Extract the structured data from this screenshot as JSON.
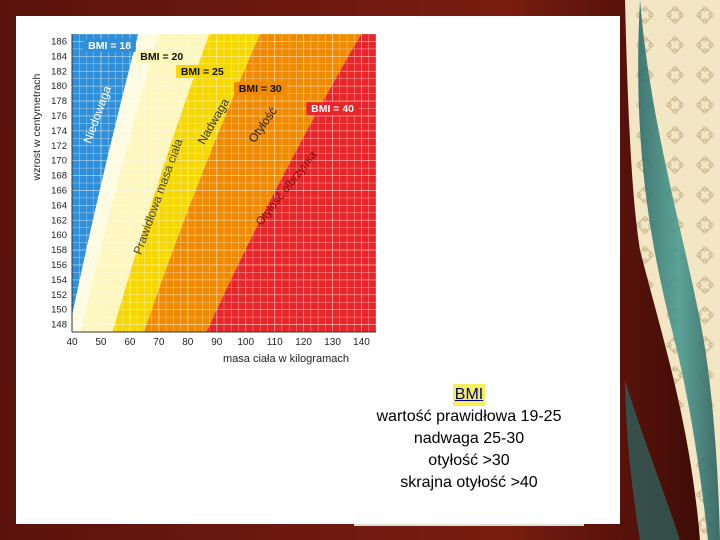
{
  "chart_data": {
    "type": "area",
    "xlabel": "masa ciała w kilogramach",
    "ylabel": "wzrost w centymetrach",
    "xlim": [
      40,
      145
    ],
    "ylim": [
      147,
      187
    ],
    "x_ticks": [
      40,
      50,
      60,
      70,
      80,
      90,
      100,
      110,
      120,
      130,
      140
    ],
    "y_ticks": [
      148,
      150,
      152,
      154,
      156,
      158,
      160,
      162,
      164,
      166,
      168,
      170,
      172,
      174,
      176,
      178,
      180,
      182,
      184,
      186
    ],
    "bmi_curves": [
      {
        "label": "BMI = 18",
        "bmi": 18
      },
      {
        "label": "BMI = 20",
        "bmi": 20
      },
      {
        "label": "BMI = 25",
        "bmi": 25
      },
      {
        "label": "BMI = 30",
        "bmi": 30
      },
      {
        "label": "BMI = 40",
        "bmi": 40
      }
    ],
    "zones": [
      {
        "name": "Niedowaga",
        "color": "#2f8fd8"
      },
      {
        "name": "Prawidłowa masa ciała",
        "color": "#fdf6bd"
      },
      {
        "name": "Nadwaga",
        "color": "#f6d800"
      },
      {
        "name": "Otyłość",
        "color": "#f08a00"
      },
      {
        "name": "Otyłość olbrzymia",
        "color": "#e8262a"
      }
    ],
    "grid": true
  },
  "info": {
    "title": "BMI",
    "lines": [
      "wartość prawidłowa 19-25",
      "nadwaga 25-30",
      "otyłość >30",
      "skrajna otyłość >40"
    ]
  }
}
